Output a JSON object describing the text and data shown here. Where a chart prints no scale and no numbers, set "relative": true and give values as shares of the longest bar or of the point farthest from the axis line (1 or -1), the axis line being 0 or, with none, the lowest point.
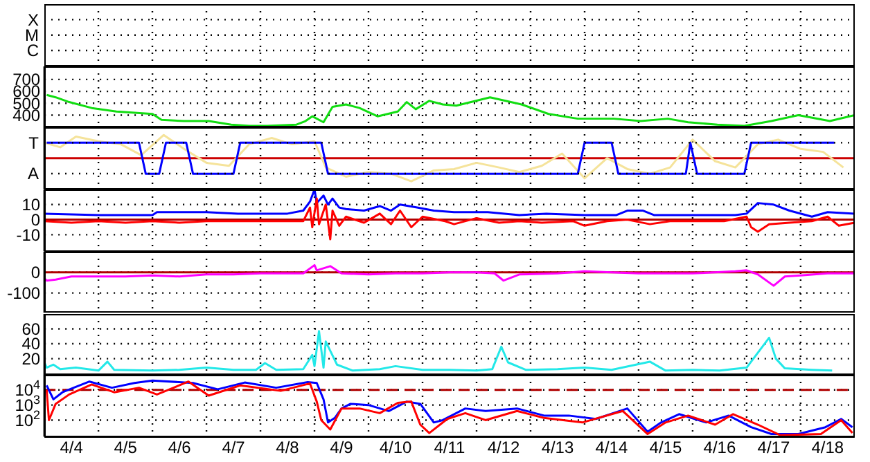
{
  "chart_data": [
    {
      "type": "other",
      "annotations": [
        "X",
        "M",
        "C"
      ]
    },
    {
      "type": "line",
      "xlim": [
        "--04-04",
        "--04-19"
      ],
      "xticks": [
        {
          "value": "--04-04T12:00",
          "label": "4/4"
        },
        {
          "value": "--04-05",
          "label": null
        },
        {
          "value": "--04-05T12:00",
          "label": "4/5"
        },
        {
          "value": "--04-06",
          "label": null
        },
        {
          "value": "--04-06T12:00",
          "label": "4/6"
        },
        {
          "value": "--04-07",
          "label": null
        },
        {
          "value": "--04-07T12:00",
          "label": "4/7"
        },
        {
          "value": "--04-08",
          "label": null
        },
        {
          "value": "--04-08T12:00",
          "label": "4/8"
        },
        {
          "value": "--04-09",
          "label": null
        },
        {
          "value": "--04-09T12:00",
          "label": "4/9"
        },
        {
          "value": "--04-10",
          "label": null
        },
        {
          "value": "--04-10T12:00",
          "label": "4/10"
        },
        {
          "value": "--04-11",
          "label": null
        },
        {
          "value": "--04-11T12:00",
          "label": "4/11"
        },
        {
          "value": "--04-12",
          "label": null
        },
        {
          "value": "--04-12T12:00",
          "label": "4/12"
        },
        {
          "value": "--04-13",
          "label": null
        },
        {
          "value": "--04-13T12:00",
          "label": "4/13"
        },
        {
          "value": "--04-14",
          "label": null
        },
        {
          "value": "--04-14T12:00",
          "label": "4/14"
        },
        {
          "value": "--04-15",
          "label": null
        },
        {
          "value": "--04-15T12:00",
          "label": "4/15"
        },
        {
          "value": "--04-16",
          "label": null
        },
        {
          "value": "--04-16T12:00",
          "label": "4/16"
        },
        {
          "value": "--04-17",
          "label": null
        },
        {
          "value": "--04-17T12:00",
          "label": "4/17"
        },
        {
          "value": "--04-18",
          "label": null
        },
        {
          "value": "--04-18T12:00",
          "label": "4/18"
        }
      ],
      "ylim": [
        290,
        810
      ],
      "yticks": [
        400,
        500,
        600,
        700
      ],
      "grid": true,
      "tick_labels": "y",
      "marker": "none",
      "series": [
        {
          "color": "#11dd11",
          "x": [
            "--04-04T01:00",
            "--04-04T05:00",
            "--04-04T11:00",
            "--04-04T21:00",
            "--04-05T08:00",
            "--04-05T16:00",
            "--04-06T00:00",
            "--04-06T04:00",
            "--04-06T14:00",
            "--04-07T01:00",
            "--04-07T11:00",
            "--04-07T19:00",
            "--04-08T03:00",
            "--04-08T16:00",
            "--04-08T20:00",
            "--04-08T23:00",
            "--04-09T04:00",
            "--04-09T08:00",
            "--04-09T14:00",
            "--04-09T20:00",
            "--04-10T04:00",
            "--04-10T13:00",
            "--04-10T17:00",
            "--04-10T21:00",
            "--04-11T03:00",
            "--04-11T09:00",
            "--04-11T15:00",
            "--04-12T06:00",
            "--04-12T20:00",
            "--04-13T08:00",
            "--04-13T21:00",
            "--04-14T13:00",
            "--04-15T01:00",
            "--04-15T13:00",
            "--04-15T22:00",
            "--04-16T11:00",
            "--04-16T23:00",
            "--04-17T11:00",
            "--04-17T23:00",
            "--04-18T13:00",
            "--04-19T00:00"
          ],
          "values": [
            570,
            550,
            510,
            460,
            430,
            420,
            410,
            360,
            350,
            350,
            320,
            310,
            310,
            320,
            350,
            390,
            340,
            470,
            490,
            460,
            390,
            430,
            510,
            450,
            520,
            490,
            480,
            550,
            490,
            410,
            370,
            370,
            350,
            370,
            340,
            320,
            310,
            350,
            400,
            350,
            400
          ]
        }
      ]
    },
    {
      "type": "line",
      "relative": true,
      "xlim": [
        "--04-04",
        "--04-19"
      ],
      "xticks": [
        {
          "value": "--04-04T12:00",
          "label": "4/4"
        },
        {
          "value": "--04-05",
          "label": null
        },
        {
          "value": "--04-05T12:00",
          "label": "4/5"
        },
        {
          "value": "--04-06",
          "label": null
        },
        {
          "value": "--04-06T12:00",
          "label": "4/6"
        },
        {
          "value": "--04-07",
          "label": null
        },
        {
          "value": "--04-07T12:00",
          "label": "4/7"
        },
        {
          "value": "--04-08",
          "label": null
        },
        {
          "value": "--04-08T12:00",
          "label": "4/8"
        },
        {
          "value": "--04-09",
          "label": null
        },
        {
          "value": "--04-09T12:00",
          "label": "4/9"
        },
        {
          "value": "--04-10",
          "label": null
        },
        {
          "value": "--04-10T12:00",
          "label": "4/10"
        },
        {
          "value": "--04-11",
          "label": null
        },
        {
          "value": "--04-11T12:00",
          "label": "4/11"
        },
        {
          "value": "--04-12",
          "label": null
        },
        {
          "value": "--04-12T12:00",
          "label": "4/12"
        },
        {
          "value": "--04-13",
          "label": null
        },
        {
          "value": "--04-13T12:00",
          "label": "4/13"
        },
        {
          "value": "--04-14",
          "label": null
        },
        {
          "value": "--04-14T12:00",
          "label": "4/14"
        },
        {
          "value": "--04-15",
          "label": null
        },
        {
          "value": "--04-15T12:00",
          "label": "4/15"
        },
        {
          "value": "--04-16",
          "label": null
        },
        {
          "value": "--04-16T12:00",
          "label": "4/16"
        },
        {
          "value": "--04-17",
          "label": null
        },
        {
          "value": "--04-17T12:00",
          "label": "4/17"
        },
        {
          "value": "--04-18",
          "label": null
        },
        {
          "value": "--04-18T12:00",
          "label": "4/18"
        }
      ],
      "grid": true,
      "tick_labels": false,
      "marker": "none",
      "annotations": [
        "T",
        "A"
      ],
      "ref_lines": [
        {
          "axis": "y",
          "value": 0,
          "color": "#cc0000"
        }
      ],
      "series": [
        {
          "color": "#f5e39a",
          "x": [
            "--04-04T00:00",
            "--04-04T07:00",
            "--04-04T14:00",
            "--04-05T00:00",
            "--04-05T10:00",
            "--04-05T19:00",
            "--04-06T05:00",
            "--04-06T14:00",
            "--04-07T00:00",
            "--04-07T10:00",
            "--04-07T19:00",
            "--04-08T05:00",
            "--04-08T14:00",
            "--04-09T00:00",
            "--04-09T05:00",
            "--04-09T14:00",
            "--04-10T00:00",
            "--04-10T10:00",
            "--04-10T19:00",
            "--04-11T05:00",
            "--04-11T14:00",
            "--04-12T00:00",
            "--04-12T10:00",
            "--04-12T19:00",
            "--04-13T05:00",
            "--04-13T14:00",
            "--04-14T00:00",
            "--04-14T10:00",
            "--04-14T19:00",
            "--04-15T05:00",
            "--04-15T14:00",
            "--04-16T00:00",
            "--04-16T10:00",
            "--04-16T19:00",
            "--04-17T05:00",
            "--04-17T14:00",
            "--04-18T00:00",
            "--04-18T10:00",
            "--04-18T19:00"
          ],
          "values": [
            0.67,
            0.47,
            0.93,
            0.73,
            0.6,
            0.13,
            1.0,
            0.4,
            -0.2,
            -0.33,
            0.6,
            0.87,
            0.6,
            0.73,
            -0.4,
            -0.8,
            -0.6,
            -0.67,
            -1.0,
            -0.53,
            -0.47,
            -0.2,
            -0.4,
            -0.6,
            -0.33,
            0.2,
            -0.87,
            0.0,
            -0.47,
            -0.67,
            -0.4,
            0.8,
            -0.13,
            -0.4,
            0.6,
            0.8,
            0.4,
            0.27,
            -0.4
          ]
        },
        {
          "color": "#0000ff",
          "x": [
            "--04-04T01:00",
            "--04-05T18:00",
            "--04-05T21:00",
            "--04-06T03:00",
            "--04-06T06:00",
            "--04-06T15:00",
            "--04-06T18:00",
            "--04-07T12:00",
            "--04-07T15:00",
            "--04-09T03:00",
            "--04-09T06:00",
            "--04-13T21:00",
            "--04-14T00:00",
            "--04-14T12:00",
            "--04-14T15:00",
            "--04-15T21:00",
            "--04-15T23:00",
            "--04-16T02:00",
            "--04-16T23:00",
            "--04-17T02:00",
            "--04-18T15:00"
          ],
          "values": [
            0.67,
            0.67,
            -0.67,
            -0.67,
            0.67,
            0.67,
            -0.67,
            -0.67,
            0.67,
            0.67,
            -0.67,
            -0.67,
            0.67,
            0.67,
            -0.67,
            -0.67,
            0.67,
            -0.67,
            -0.67,
            0.67,
            0.67
          ]
        }
      ]
    },
    {
      "type": "line",
      "xlim": [
        "--04-04",
        "--04-19"
      ],
      "xticks": [
        {
          "value": "--04-04T12:00",
          "label": "4/4"
        },
        {
          "value": "--04-05",
          "label": null
        },
        {
          "value": "--04-05T12:00",
          "label": "4/5"
        },
        {
          "value": "--04-06",
          "label": null
        },
        {
          "value": "--04-06T12:00",
          "label": "4/6"
        },
        {
          "value": "--04-07",
          "label": null
        },
        {
          "value": "--04-07T12:00",
          "label": "4/7"
        },
        {
          "value": "--04-08",
          "label": null
        },
        {
          "value": "--04-08T12:00",
          "label": "4/8"
        },
        {
          "value": "--04-09",
          "label": null
        },
        {
          "value": "--04-09T12:00",
          "label": "4/9"
        },
        {
          "value": "--04-10",
          "label": null
        },
        {
          "value": "--04-10T12:00",
          "label": "4/10"
        },
        {
          "value": "--04-11",
          "label": null
        },
        {
          "value": "--04-11T12:00",
          "label": "4/11"
        },
        {
          "value": "--04-12",
          "label": null
        },
        {
          "value": "--04-12T12:00",
          "label": "4/12"
        },
        {
          "value": "--04-13",
          "label": null
        },
        {
          "value": "--04-13T12:00",
          "label": "4/13"
        },
        {
          "value": "--04-14",
          "label": null
        },
        {
          "value": "--04-14T12:00",
          "label": "4/14"
        },
        {
          "value": "--04-15",
          "label": null
        },
        {
          "value": "--04-15T12:00",
          "label": "4/15"
        },
        {
          "value": "--04-16",
          "label": null
        },
        {
          "value": "--04-16T12:00",
          "label": "4/16"
        },
        {
          "value": "--04-17",
          "label": null
        },
        {
          "value": "--04-17T12:00",
          "label": "4/17"
        },
        {
          "value": "--04-18",
          "label": null
        },
        {
          "value": "--04-18T12:00",
          "label": "4/18"
        }
      ],
      "ylim": [
        -21,
        20
      ],
      "yticks": [
        10,
        0,
        -10
      ],
      "grid": true,
      "tick_labels": "y",
      "marker": "none",
      "ref_lines": [
        {
          "axis": "y",
          "value": 0,
          "color": "#b00000"
        }
      ],
      "series": [
        {
          "color": "#0000ff",
          "x": [
            "--04-04T00:00",
            "--04-05T00:00",
            "--04-06T00:00",
            "--04-06T02:00",
            "--04-07T00:00",
            "--04-07T14:00",
            "--04-08T12:00",
            "--04-08T19:00",
            "--04-08T22:00",
            "--04-09T00:00",
            "--04-09T01:00",
            "--04-09T04:00",
            "--04-09T06:00",
            "--04-09T08:00",
            "--04-09T11:00",
            "--04-09T14:00",
            "--04-09T22:00",
            "--04-10T05:00",
            "--04-10T10:00",
            "--04-10T14:00",
            "--04-10T22:00",
            "--04-11T05:00",
            "--04-11T14:00",
            "--04-12T05:00",
            "--04-12T19:00",
            "--04-13T07:00",
            "--04-14T00:00",
            "--04-14T14:00",
            "--04-14T19:00",
            "--04-15T02:00",
            "--04-15T07:00",
            "--04-16T00:00",
            "--04-16T19:00",
            "--04-17T00:00",
            "--04-17T05:00",
            "--04-17T12:00",
            "--04-17T19:00",
            "--04-18T05:00",
            "--04-18T12:00",
            "--04-19T00:00"
          ],
          "values": [
            4,
            3,
            3,
            5,
            5,
            4,
            4,
            6,
            12,
            20,
            11,
            16,
            10,
            14,
            8,
            7,
            6,
            9,
            6,
            10,
            8,
            6,
            5,
            5,
            3,
            4,
            3,
            3,
            6,
            6,
            3,
            3,
            3,
            4,
            11,
            10,
            6,
            2,
            5,
            4
          ]
        },
        {
          "color": "#ff0000",
          "x": [
            "--04-04T00:00",
            "--04-04T12:00",
            "--04-05T00:00",
            "--04-05T12:00",
            "--04-06T00:00",
            "--04-06T12:00",
            "--04-07T00:00",
            "--04-07T12:00",
            "--04-08T00:00",
            "--04-08T19:00",
            "--04-08T22:00",
            "--04-08T23:00",
            "--04-09T01:00",
            "--04-09T02:00",
            "--04-09T05:00",
            "--04-09T07:00",
            "--04-09T08:00",
            "--04-09T11:00",
            "--04-09T14:00",
            "--04-09T22:00",
            "--04-10T05:00",
            "--04-10T10:00",
            "--04-10T14:00",
            "--04-10T19:00",
            "--04-11T00:00",
            "--04-11T10:00",
            "--04-11T14:00",
            "--04-12T00:00",
            "--04-12T10:00",
            "--04-12T19:00",
            "--04-13T05:00",
            "--04-13T19:00",
            "--04-14T00:00",
            "--04-14T10:00",
            "--04-14T19:00",
            "--04-15T05:00",
            "--04-15T14:00",
            "--04-16T00:00",
            "--04-16T14:00",
            "--04-17T00:00",
            "--04-17T02:00",
            "--04-17T05:00",
            "--04-17T10:00",
            "--04-17T19:00",
            "--04-18T05:00",
            "--04-18T12:00",
            "--04-18T17:00",
            "--04-19T00:00"
          ],
          "values": [
            -1,
            -2,
            -1,
            -2,
            -1,
            -2,
            -1,
            -1,
            -1,
            -1,
            8,
            -5,
            14,
            -3,
            10,
            -13,
            6,
            -4,
            2,
            -2,
            4,
            -3,
            6,
            -5,
            2,
            -1,
            -3,
            1,
            -2,
            -1,
            -2,
            -1,
            -4,
            -1,
            0,
            -3,
            -1,
            -1,
            -1,
            2,
            -5,
            -8,
            -3,
            -2,
            -1,
            2,
            -4,
            -2
          ]
        }
      ]
    },
    {
      "type": "line",
      "xlim": [
        "--04-04",
        "--04-19"
      ],
      "xticks": [
        {
          "value": "--04-04T12:00",
          "label": "4/4"
        },
        {
          "value": "--04-05",
          "label": null
        },
        {
          "value": "--04-05T12:00",
          "label": "4/5"
        },
        {
          "value": "--04-06",
          "label": null
        },
        {
          "value": "--04-06T12:00",
          "label": "4/6"
        },
        {
          "value": "--04-07",
          "label": null
        },
        {
          "value": "--04-07T12:00",
          "label": "4/7"
        },
        {
          "value": "--04-08",
          "label": null
        },
        {
          "value": "--04-08T12:00",
          "label": "4/8"
        },
        {
          "value": "--04-09",
          "label": null
        },
        {
          "value": "--04-09T12:00",
          "label": "4/9"
        },
        {
          "value": "--04-10",
          "label": null
        },
        {
          "value": "--04-10T12:00",
          "label": "4/10"
        },
        {
          "value": "--04-11",
          "label": null
        },
        {
          "value": "--04-11T12:00",
          "label": "4/11"
        },
        {
          "value": "--04-12",
          "label": null
        },
        {
          "value": "--04-12T12:00",
          "label": "4/12"
        },
        {
          "value": "--04-13",
          "label": null
        },
        {
          "value": "--04-13T12:00",
          "label": "4/13"
        },
        {
          "value": "--04-14",
          "label": null
        },
        {
          "value": "--04-14T12:00",
          "label": "4/14"
        },
        {
          "value": "--04-15",
          "label": null
        },
        {
          "value": "--04-15T12:00",
          "label": "4/15"
        },
        {
          "value": "--04-16",
          "label": null
        },
        {
          "value": "--04-16T12:00",
          "label": "4/16"
        },
        {
          "value": "--04-17",
          "label": null
        },
        {
          "value": "--04-17T12:00",
          "label": "4/17"
        },
        {
          "value": "--04-18",
          "label": null
        },
        {
          "value": "--04-18T12:00",
          "label": "4/18"
        }
      ],
      "ylim": [
        -200,
        100
      ],
      "yticks": [
        0,
        -100
      ],
      "grid": true,
      "tick_labels": "y",
      "marker": "none",
      "ref_lines": [
        {
          "axis": "y",
          "value": 0,
          "color": "#b00000"
        }
      ],
      "series": [
        {
          "color": "#ff00ff",
          "x": [
            "--04-04T00:00",
            "--04-04T01:00",
            "--04-04T05:00",
            "--04-04T12:00",
            "--04-05T00:00",
            "--04-05T12:00",
            "--04-06T00:00",
            "--04-06T12:00",
            "--04-07T00:00",
            "--04-07T12:00",
            "--04-08T00:00",
            "--04-08T19:00",
            "--04-09T00:00",
            "--04-09T01:00",
            "--04-09T07:00",
            "--04-09T12:00",
            "--04-10T00:00",
            "--04-10T12:00",
            "--04-11T00:00",
            "--04-11T12:00",
            "--04-12T00:00",
            "--04-12T08:00",
            "--04-12T12:00",
            "--04-12T19:00",
            "--04-13T12:00",
            "--04-14T00:00",
            "--04-14T12:00",
            "--04-15T00:00",
            "--04-16T00:00",
            "--04-16T19:00",
            "--04-17T00:00",
            "--04-17T05:00",
            "--04-17T12:00",
            "--04-17T17:00",
            "--04-18T00:00",
            "--04-18T12:00",
            "--04-19T00:00"
          ],
          "values": [
            -30,
            -40,
            -35,
            -20,
            -20,
            -20,
            -15,
            -20,
            -10,
            -10,
            -5,
            -5,
            35,
            10,
            30,
            -5,
            -10,
            -5,
            -5,
            0,
            0,
            -5,
            -40,
            -10,
            -5,
            5,
            0,
            -5,
            -5,
            5,
            10,
            -10,
            -65,
            -20,
            -15,
            -5,
            -5
          ]
        }
      ]
    },
    {
      "type": "line",
      "xlim": [
        "--04-04",
        "--04-19"
      ],
      "xticks": [
        {
          "value": "--04-04T12:00",
          "label": "4/4"
        },
        {
          "value": "--04-05",
          "label": null
        },
        {
          "value": "--04-05T12:00",
          "label": "4/5"
        },
        {
          "value": "--04-06",
          "label": null
        },
        {
          "value": "--04-06T12:00",
          "label": "4/6"
        },
        {
          "value": "--04-07",
          "label": null
        },
        {
          "value": "--04-07T12:00",
          "label": "4/7"
        },
        {
          "value": "--04-08",
          "label": null
        },
        {
          "value": "--04-08T12:00",
          "label": "4/8"
        },
        {
          "value": "--04-09",
          "label": null
        },
        {
          "value": "--04-09T12:00",
          "label": "4/9"
        },
        {
          "value": "--04-10",
          "label": null
        },
        {
          "value": "--04-10T12:00",
          "label": "4/10"
        },
        {
          "value": "--04-11",
          "label": null
        },
        {
          "value": "--04-11T12:00",
          "label": "4/11"
        },
        {
          "value": "--04-12",
          "label": null
        },
        {
          "value": "--04-12T12:00",
          "label": "4/12"
        },
        {
          "value": "--04-13",
          "label": null
        },
        {
          "value": "--04-13T12:00",
          "label": "4/13"
        },
        {
          "value": "--04-14",
          "label": null
        },
        {
          "value": "--04-14T12:00",
          "label": "4/14"
        },
        {
          "value": "--04-15",
          "label": null
        },
        {
          "value": "--04-15T12:00",
          "label": "4/15"
        },
        {
          "value": "--04-16",
          "label": null
        },
        {
          "value": "--04-16T12:00",
          "label": "4/16"
        },
        {
          "value": "--04-17",
          "label": null
        },
        {
          "value": "--04-17T12:00",
          "label": "4/17"
        },
        {
          "value": "--04-18",
          "label": null
        },
        {
          "value": "--04-18T12:00",
          "label": "4/18"
        }
      ],
      "ylim": [
        -3,
        80
      ],
      "yticks": [
        20,
        40,
        60
      ],
      "grid": true,
      "tick_labels": "y",
      "marker": "none",
      "series": [
        {
          "color": "#22e8e8",
          "x": [
            "--04-04T00:00",
            "--04-04T01:00",
            "--04-04T04:00",
            "--04-04T07:00",
            "--04-04T14:00",
            "--04-05T00:00",
            "--04-05T04:00",
            "--04-05T07:00",
            "--04-06T00:00",
            "--04-06T12:00",
            "--04-07T00:00",
            "--04-07T12:00",
            "--04-07T22:00",
            "--04-08T02:00",
            "--04-08T07:00",
            "--04-08T19:00",
            "--04-08T23:00",
            "--04-09T00:00",
            "--04-09T02:00",
            "--04-09T04:00",
            "--04-09T05:00",
            "--04-09T10:00",
            "--04-09T17:00",
            "--04-10T05:00",
            "--04-10T12:00",
            "--04-11T00:00",
            "--04-11T12:00",
            "--04-12T00:00",
            "--04-12T07:00",
            "--04-12T11:00",
            "--04-12T14:00",
            "--04-12T22:00",
            "--04-13T12:00",
            "--04-14T00:00",
            "--04-14T12:00",
            "--04-15T05:00",
            "--04-15T12:00",
            "--04-16T00:00",
            "--04-16T12:00",
            "--04-17T00:00",
            "--04-17T10:00",
            "--04-17T13:00",
            "--04-17T17:00",
            "--04-18T05:00",
            "--04-18T14:00"
          ],
          "values": [
            15,
            8,
            12,
            6,
            8,
            4,
            16,
            5,
            4,
            5,
            8,
            5,
            5,
            14,
            5,
            6,
            25,
            10,
            57,
            8,
            43,
            12,
            4,
            6,
            10,
            5,
            5,
            4,
            6,
            36,
            15,
            5,
            6,
            8,
            5,
            16,
            4,
            5,
            4,
            8,
            48,
            20,
            7,
            5,
            4
          ]
        }
      ]
    },
    {
      "type": "line",
      "xlim": [
        "--04-04",
        "--04-19"
      ],
      "xticks": [
        {
          "value": "--04-04T12:00",
          "label": "4/4"
        },
        {
          "value": "--04-05",
          "label": null
        },
        {
          "value": "--04-05T12:00",
          "label": "4/5"
        },
        {
          "value": "--04-06",
          "label": null
        },
        {
          "value": "--04-06T12:00",
          "label": "4/6"
        },
        {
          "value": "--04-07",
          "label": null
        },
        {
          "value": "--04-07T12:00",
          "label": "4/7"
        },
        {
          "value": "--04-08",
          "label": null
        },
        {
          "value": "--04-08T12:00",
          "label": "4/8"
        },
        {
          "value": "--04-09",
          "label": null
        },
        {
          "value": "--04-09T12:00",
          "label": "4/9"
        },
        {
          "value": "--04-10",
          "label": null
        },
        {
          "value": "--04-10T12:00",
          "label": "4/10"
        },
        {
          "value": "--04-11",
          "label": null
        },
        {
          "value": "--04-11T12:00",
          "label": "4/11"
        },
        {
          "value": "--04-12",
          "label": null
        },
        {
          "value": "--04-12T12:00",
          "label": "4/12"
        },
        {
          "value": "--04-13",
          "label": null
        },
        {
          "value": "--04-13T12:00",
          "label": "4/13"
        },
        {
          "value": "--04-14",
          "label": null
        },
        {
          "value": "--04-14T12:00",
          "label": "4/14"
        },
        {
          "value": "--04-15",
          "label": null
        },
        {
          "value": "--04-15T12:00",
          "label": "4/15"
        },
        {
          "value": "--04-16",
          "label": null
        },
        {
          "value": "--04-16T12:00",
          "label": "4/16"
        },
        {
          "value": "--04-17",
          "label": null
        },
        {
          "value": "--04-17T12:00",
          "label": "4/17"
        },
        {
          "value": "--04-18",
          "label": null
        },
        {
          "value": "--04-18T12:00",
          "label": "4/18"
        }
      ],
      "ylim": [
        8,
        100000
      ],
      "log": "y",
      "yticks": [
        {
          "value": 100,
          "label": "10$^{2}$"
        },
        {
          "value": 1000,
          "label": "10$^{3}$"
        },
        {
          "value": 10000,
          "label": "10$^{4}$"
        }
      ],
      "grid": true,
      "marker": "none",
      "ref_lines": [
        {
          "axis": "y",
          "value": 10000,
          "color": "#b00000",
          "line_style": "dashed"
        }
      ],
      "series": [
        {
          "color": "#0000ff",
          "x": [
            "--04-04T01:00",
            "--04-04T04:00",
            "--04-04T08:00",
            "--04-04T13:00",
            "--04-04T20:00",
            "--04-05T06:00",
            "--04-05T16:00",
            "--04-06T00:00",
            "--04-06T18:00",
            "--04-07T05:00",
            "--04-07T17:00",
            "--04-08T07:00",
            "--04-08T21:00",
            "--04-09T01:00",
            "--04-09T04:00",
            "--04-09T06:00",
            "--04-09T09:00",
            "--04-09T12:00",
            "--04-09T16:00",
            "--04-10T00:00",
            "--04-10T09:00",
            "--04-10T17:00",
            "--04-10T23:00",
            "--04-11T05:00",
            "--04-11T09:00",
            "--04-11T19:00",
            "--04-12T04:00",
            "--04-12T18:00",
            "--04-13T06:00",
            "--04-13T17:00",
            "--04-14T05:00",
            "--04-14T19:00",
            "--04-15T04:00",
            "--04-15T10:00",
            "--04-15T18:00",
            "--04-16T06:00",
            "--04-16T16:00",
            "--04-17T02:00",
            "--04-17T11:00",
            "--04-17T23:00",
            "--04-18T11:00",
            "--04-18T18:00",
            "--04-18T23:00"
          ],
          "values": [
            20000,
            2400,
            7000,
            14000,
            36000,
            14000,
            29000,
            42000,
            29000,
            11000,
            31000,
            14000,
            33000,
            29000,
            2400,
            70,
            140,
            590,
            1200,
            1000,
            400,
            1700,
            1200,
            70,
            100,
            590,
            400,
            590,
            200,
            200,
            120,
            590,
            17,
            70,
            250,
            70,
            200,
            34,
            12,
            12,
            34,
            120,
            34
          ]
        },
        {
          "color": "#ff0000",
          "x": [
            "--04-04T01:00",
            "--04-04T02:00",
            "--04-04T05:00",
            "--04-04T11:00",
            "--04-04T21:00",
            "--04-05T07:00",
            "--04-05T18:00",
            "--04-06T02:00",
            "--04-06T16:00",
            "--04-07T01:00",
            "--04-07T15:00",
            "--04-08T09:00",
            "--04-08T22:00",
            "--04-09T01:00",
            "--04-09T03:00",
            "--04-09T07:00",
            "--04-09T12:00",
            "--04-09T20:00",
            "--04-10T05:00",
            "--04-10T13:00",
            "--04-10T19:00",
            "--04-10T23:00",
            "--04-11T03:00",
            "--04-11T11:00",
            "--04-11T19:00",
            "--04-12T04:00",
            "--04-12T18:00",
            "--04-13T06:00",
            "--04-13T23:00",
            "--04-14T17:00",
            "--04-15T04:00",
            "--04-15T12:00",
            "--04-15T22:00",
            "--04-16T10:00",
            "--04-16T18:00",
            "--04-17T05:00",
            "--04-17T15:00",
            "--04-18T09:00",
            "--04-18T18:00",
            "--04-18T23:00"
          ],
          "values": [
            10000,
            100,
            1200,
            5000,
            23000,
            7000,
            14000,
            5000,
            36000,
            4200,
            20000,
            8700,
            27000,
            1700,
            100,
            24,
            590,
            590,
            290,
            1400,
            1700,
            50,
            14,
            120,
            290,
            100,
            400,
            140,
            70,
            400,
            12,
            70,
            200,
            50,
            250,
            50,
            10,
            12,
            100,
            14
          ]
        }
      ]
    }
  ]
}
